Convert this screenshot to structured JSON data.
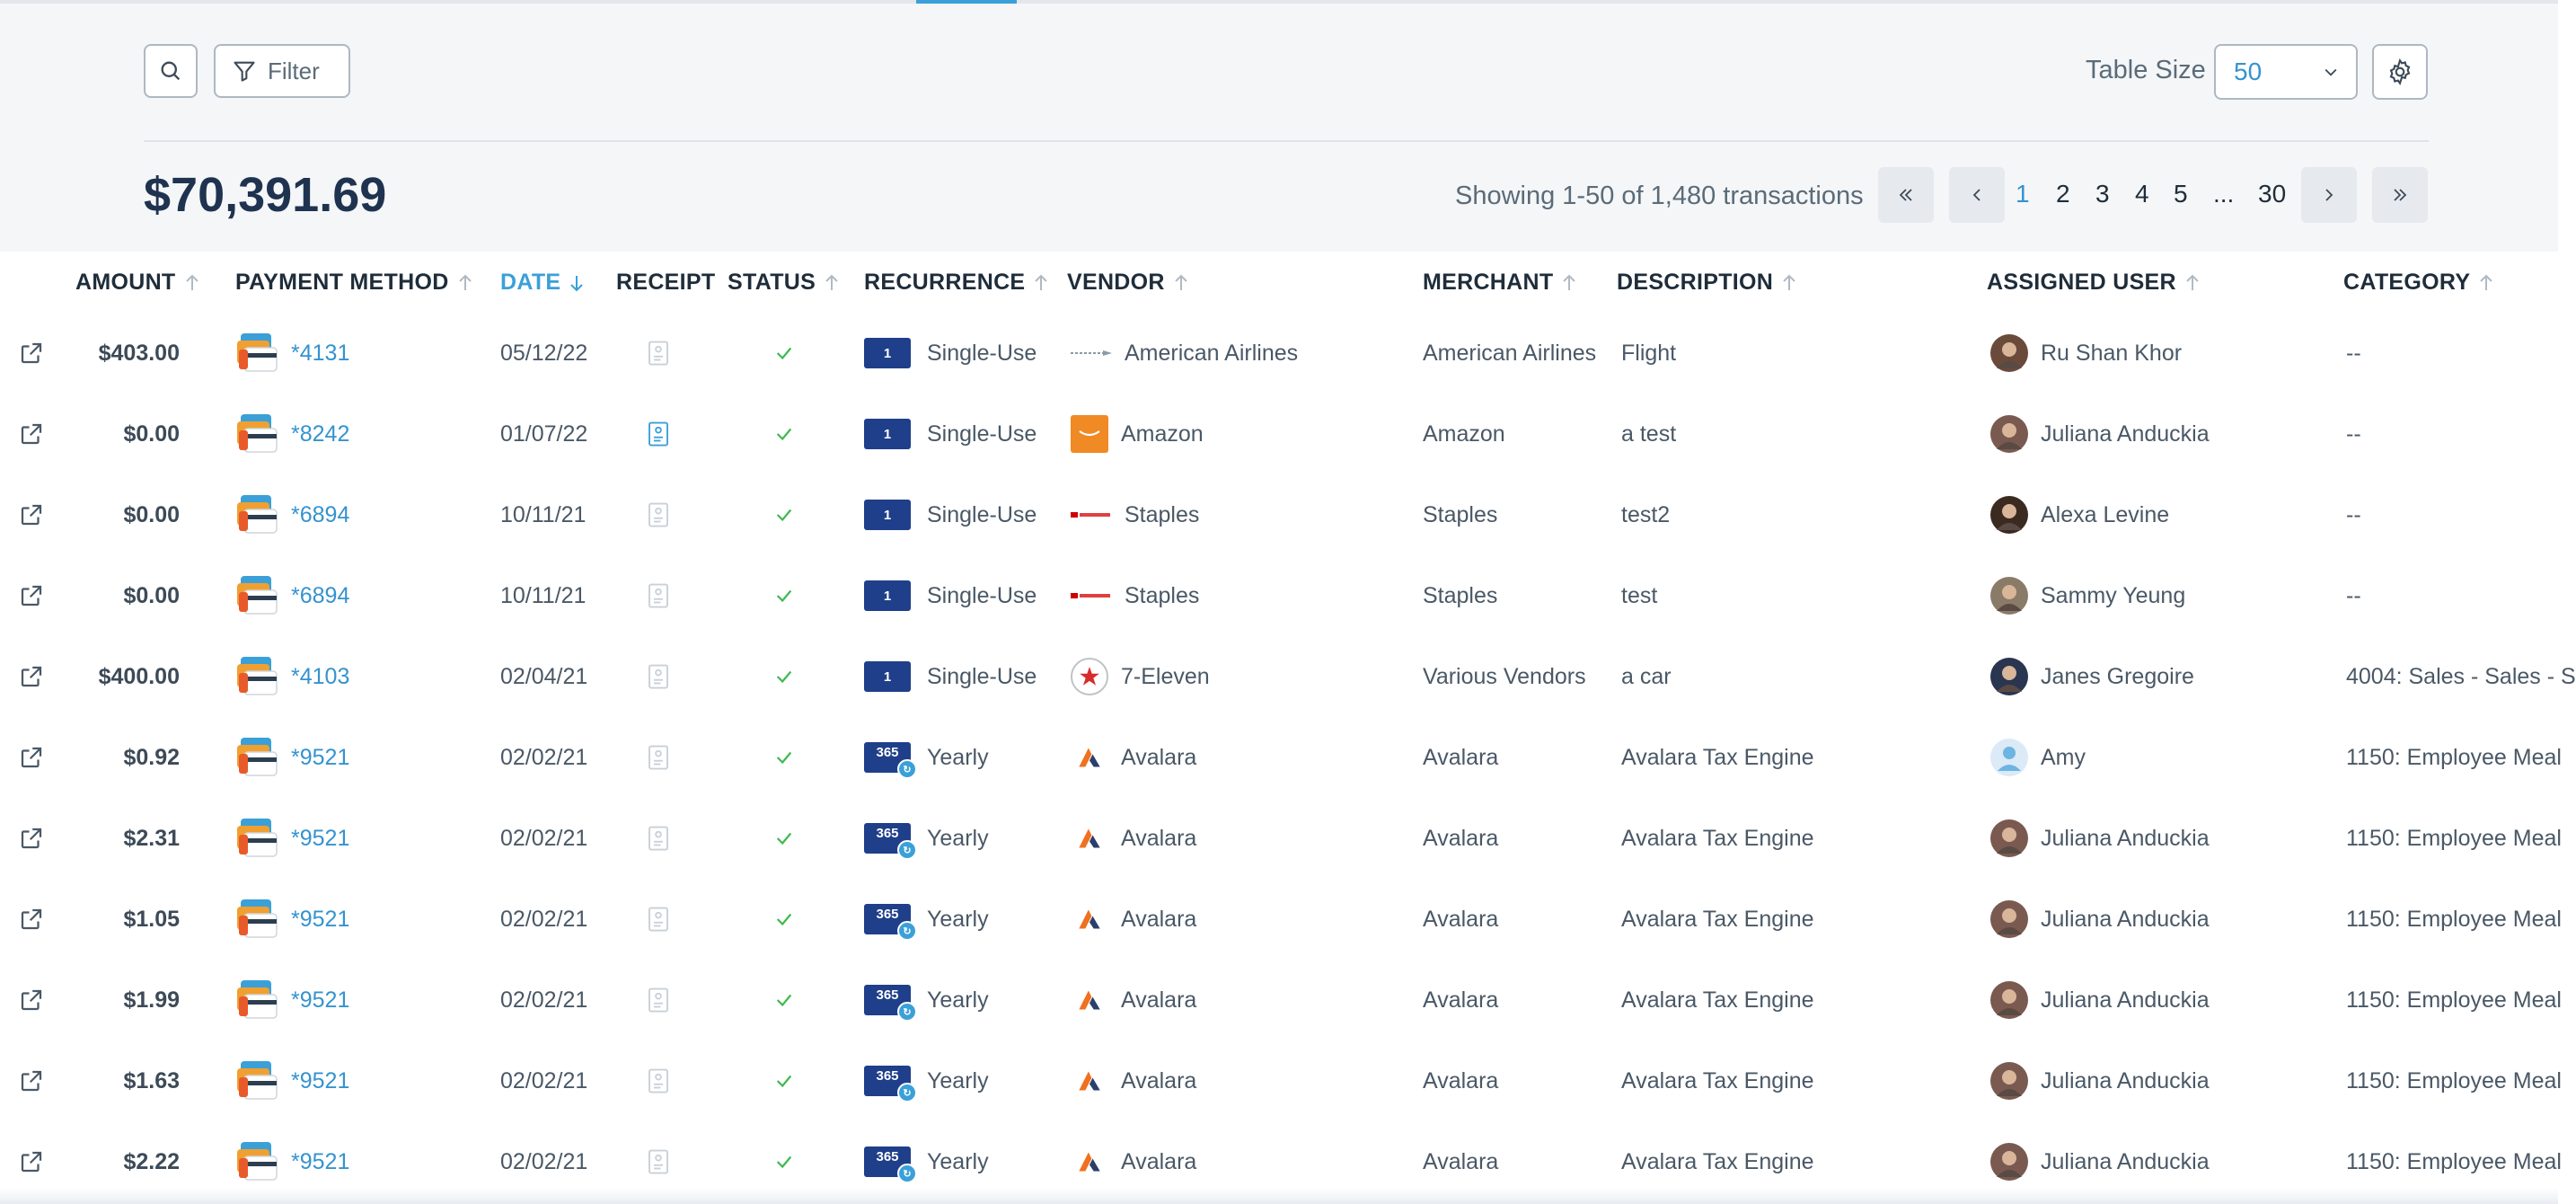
{
  "toolbar": {
    "search_icon": "search-icon",
    "filter_label": "Filter",
    "table_size_label": "Table Size",
    "table_size_value": "50"
  },
  "summary": {
    "total": "$70,391.69",
    "showing": "Showing 1-50 of 1,480 transactions"
  },
  "pagination": {
    "pages": [
      "1",
      "2",
      "3",
      "4",
      "5",
      "...",
      "30"
    ],
    "current": "1"
  },
  "columns": {
    "amount": "AMOUNT",
    "payment_method": "PAYMENT METHOD",
    "date": "DATE",
    "receipt": "RECEIPT",
    "status": "STATUS",
    "recurrence": "RECURRENCE",
    "vendor": "VENDOR",
    "merchant": "MERCHANT",
    "description": "DESCRIPTION",
    "assigned_user": "ASSIGNED USER",
    "category": "CATEGORY"
  },
  "rows": [
    {
      "amount": "$403.00",
      "card": "*4131",
      "date": "05/12/22",
      "receipt": "none",
      "badge": "1",
      "recurrence": "Single-Use",
      "vendor": "American Airlines",
      "vendor_logo": "american-airlines",
      "merchant": "American Airlines",
      "description": "Flight",
      "user": "Ru Shan Khor",
      "category": "--"
    },
    {
      "amount": "$0.00",
      "card": "*8242",
      "date": "01/07/22",
      "receipt": "attached",
      "badge": "1",
      "recurrence": "Single-Use",
      "vendor": "Amazon",
      "vendor_logo": "amazon",
      "merchant": "Amazon",
      "description": "a test",
      "user": "Juliana Anduckia",
      "category": "--"
    },
    {
      "amount": "$0.00",
      "card": "*6894",
      "date": "10/11/21",
      "receipt": "none",
      "badge": "1",
      "recurrence": "Single-Use",
      "vendor": "Staples",
      "vendor_logo": "staples",
      "merchant": "Staples",
      "description": "test2",
      "user": "Alexa Levine",
      "category": "--"
    },
    {
      "amount": "$0.00",
      "card": "*6894",
      "date": "10/11/21",
      "receipt": "none",
      "badge": "1",
      "recurrence": "Single-Use",
      "vendor": "Staples",
      "vendor_logo": "staples",
      "merchant": "Staples",
      "description": "test",
      "user": "Sammy Yeung",
      "category": "--"
    },
    {
      "amount": "$400.00",
      "card": "*4103",
      "date": "02/04/21",
      "receipt": "none",
      "badge": "1",
      "recurrence": "Single-Use",
      "vendor": "7-Eleven",
      "vendor_logo": "seven-eleven",
      "merchant": "Various Vendors",
      "description": "a car",
      "user": "Janes Gregoire",
      "category": "4004: Sales - Sales - S"
    },
    {
      "amount": "$0.92",
      "card": "*9521",
      "date": "02/02/21",
      "receipt": "none",
      "badge": "365",
      "recurrence": "Yearly",
      "vendor": "Avalara",
      "vendor_logo": "avalara",
      "merchant": "Avalara",
      "description": "Avalara Tax Engine",
      "user": "Amy",
      "category": "1150: Employee Meal"
    },
    {
      "amount": "$2.31",
      "card": "*9521",
      "date": "02/02/21",
      "receipt": "none",
      "badge": "365",
      "recurrence": "Yearly",
      "vendor": "Avalara",
      "vendor_logo": "avalara",
      "merchant": "Avalara",
      "description": "Avalara Tax Engine",
      "user": "Juliana Anduckia",
      "category": "1150: Employee Meal"
    },
    {
      "amount": "$1.05",
      "card": "*9521",
      "date": "02/02/21",
      "receipt": "none",
      "badge": "365",
      "recurrence": "Yearly",
      "vendor": "Avalara",
      "vendor_logo": "avalara",
      "merchant": "Avalara",
      "description": "Avalara Tax Engine",
      "user": "Juliana Anduckia",
      "category": "1150: Employee Meal"
    },
    {
      "amount": "$1.99",
      "card": "*9521",
      "date": "02/02/21",
      "receipt": "none",
      "badge": "365",
      "recurrence": "Yearly",
      "vendor": "Avalara",
      "vendor_logo": "avalara",
      "merchant": "Avalara",
      "description": "Avalara Tax Engine",
      "user": "Juliana Anduckia",
      "category": "1150: Employee Meal"
    },
    {
      "amount": "$1.63",
      "card": "*9521",
      "date": "02/02/21",
      "receipt": "none",
      "badge": "365",
      "recurrence": "Yearly",
      "vendor": "Avalara",
      "vendor_logo": "avalara",
      "merchant": "Avalara",
      "description": "Avalara Tax Engine",
      "user": "Juliana Anduckia",
      "category": "1150: Employee Meal"
    },
    {
      "amount": "$2.22",
      "card": "*9521",
      "date": "02/02/21",
      "receipt": "none",
      "badge": "365",
      "recurrence": "Yearly",
      "vendor": "Avalara",
      "vendor_logo": "avalara",
      "merchant": "Avalara",
      "description": "Avalara Tax Engine",
      "user": "Juliana Anduckia",
      "category": "1150: Employee Meal"
    }
  ],
  "colors": {
    "accent": "#3ba0d8",
    "link": "#3493cf",
    "status_ok": "#3fb950",
    "badge": "#1f3f8a"
  }
}
